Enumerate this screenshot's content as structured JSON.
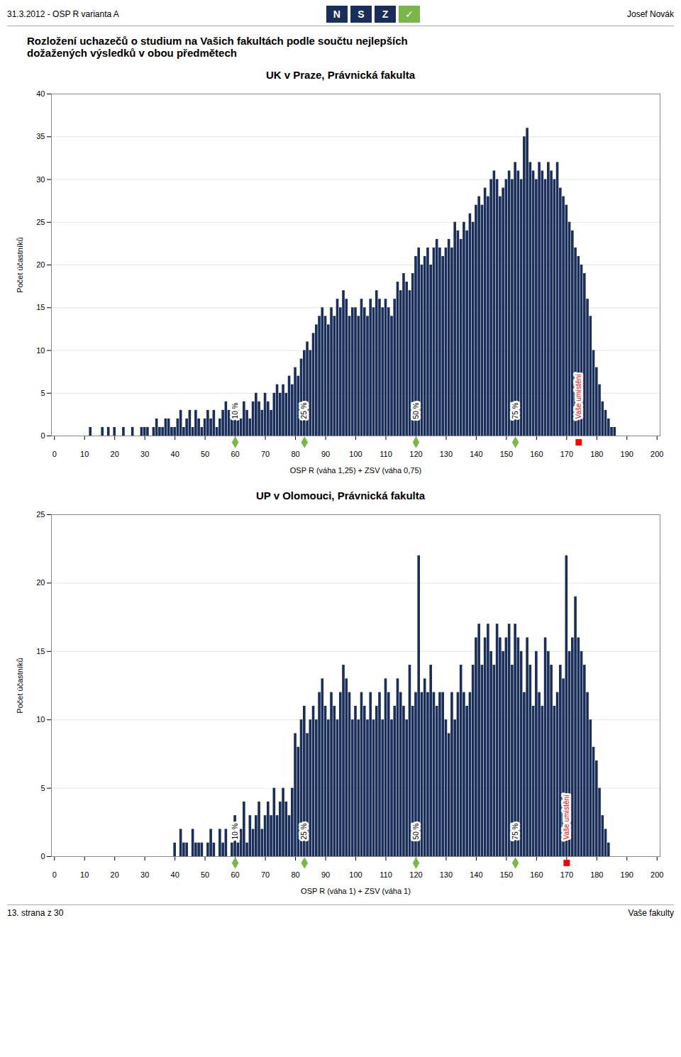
{
  "title": "Rozložení uchazečů o studium na Vašich fakultách podle součtu nejlepších",
  "subtitle": "dožažených výsledků v obou předmětech",
  "page_header": [
    "31.3.2012 - OSP R varianta A",
    "Josef Novák"
  ],
  "page_footer": [
    "13. strana z 30",
    "Vaše fakulty"
  ],
  "logo": {
    "texts": [
      "N",
      "S",
      "Z",
      "✓"
    ],
    "colors": [
      "#1a2e5a",
      "#1a2e5a",
      "#1a2e5a",
      "#7ab648"
    ]
  },
  "chart_data": [
    {
      "type": "bar",
      "title": "UK v Praze, Právnická fakulta",
      "xlabel": "OSP R (váha 1,25) + ZSV (váha 0,75)",
      "ylabel": "Počet účastníků",
      "color": "#1a2e5a",
      "grid": true,
      "xlim": [
        -1,
        201
      ],
      "xticks": [
        0,
        10,
        20,
        30,
        40,
        50,
        60,
        70,
        80,
        90,
        100,
        110,
        120,
        130,
        140,
        150,
        160,
        170,
        180,
        190,
        200
      ],
      "ylim": [
        0,
        40
      ],
      "yticks": [
        0,
        5,
        10,
        15,
        20,
        25,
        30,
        35,
        40
      ],
      "x": [
        0,
        1,
        2,
        3,
        4,
        5,
        6,
        7,
        8,
        9,
        10,
        11,
        12,
        13,
        14,
        15,
        16,
        17,
        18,
        19,
        20,
        21,
        22,
        23,
        24,
        25,
        26,
        27,
        28,
        29,
        30,
        31,
        32,
        33,
        34,
        35,
        36,
        37,
        38,
        39,
        40,
        41,
        42,
        43,
        44,
        45,
        46,
        47,
        48,
        49,
        50,
        51,
        52,
        53,
        54,
        55,
        56,
        57,
        58,
        59,
        60,
        61,
        62,
        63,
        64,
        65,
        66,
        67,
        68,
        69,
        70,
        71,
        72,
        73,
        74,
        75,
        76,
        77,
        78,
        79,
        80,
        81,
        82,
        83,
        84,
        85,
        86,
        87,
        88,
        89,
        90,
        91,
        92,
        93,
        94,
        95,
        96,
        97,
        98,
        99,
        100,
        101,
        102,
        103,
        104,
        105,
        106,
        107,
        108,
        109,
        110,
        111,
        112,
        113,
        114,
        115,
        116,
        117,
        118,
        119,
        120,
        121,
        122,
        123,
        124,
        125,
        126,
        127,
        128,
        129,
        130,
        131,
        132,
        133,
        134,
        135,
        136,
        137,
        138,
        139,
        140,
        141,
        142,
        143,
        144,
        145,
        146,
        147,
        148,
        149,
        150,
        151,
        152,
        153,
        154,
        155,
        156,
        157,
        158,
        159,
        160,
        161,
        162,
        163,
        164,
        165,
        166,
        167,
        168,
        169,
        170,
        171,
        172,
        173,
        174,
        175,
        176,
        177,
        178,
        179,
        180,
        181,
        182,
        183,
        184,
        185,
        186,
        187,
        188,
        189,
        190,
        191,
        192,
        193,
        194,
        195,
        196,
        197,
        198,
        199
      ],
      "values": [
        0,
        0,
        0,
        0,
        0,
        0,
        0,
        0,
        0,
        0,
        0,
        0,
        1,
        0,
        0,
        0,
        1,
        0,
        1,
        0,
        1,
        0,
        0,
        1,
        0,
        0,
        1,
        0,
        0,
        1,
        1,
        1,
        0,
        1,
        2,
        1,
        1,
        2,
        2,
        1,
        1,
        2,
        3,
        1,
        2,
        3,
        1,
        3,
        2,
        1,
        2,
        3,
        2,
        3,
        1,
        2,
        3,
        4,
        3,
        2,
        4,
        3,
        2,
        4,
        3,
        2,
        4,
        5,
        4,
        3,
        5,
        4,
        3,
        5,
        6,
        5,
        6,
        5,
        7,
        6,
        8,
        7,
        9,
        10,
        11,
        10,
        12,
        13,
        14,
        15,
        14,
        13,
        15,
        14,
        16,
        15,
        17,
        16,
        14,
        15,
        15,
        14,
        16,
        15,
        14,
        16,
        15,
        17,
        16,
        15,
        16,
        15,
        14,
        16,
        18,
        17,
        19,
        18,
        17,
        19,
        21,
        22,
        20,
        21,
        22,
        20,
        22,
        23,
        22,
        21,
        22,
        23,
        22,
        25,
        24,
        23,
        25,
        24,
        26,
        25,
        27,
        28,
        27,
        29,
        28,
        30,
        31,
        30,
        28,
        29,
        30,
        31,
        30,
        32,
        31,
        30,
        35,
        36,
        32,
        31,
        30,
        32,
        31,
        30,
        32,
        31,
        30,
        32,
        29,
        28,
        27,
        25,
        24,
        22,
        21,
        20,
        19,
        16,
        14,
        10,
        8,
        6,
        4,
        3,
        2,
        1,
        1,
        0,
        0,
        0,
        0,
        0,
        0,
        0,
        0,
        0,
        0,
        0,
        0,
        0
      ],
      "annotations": [
        {
          "x": 60,
          "text": "10 %",
          "marker": "diamond",
          "color": "#7ab648"
        },
        {
          "x": 83,
          "text": "25 %",
          "marker": "diamond",
          "color": "#7ab648"
        },
        {
          "x": 120,
          "text": "50 %",
          "marker": "diamond",
          "color": "#7ab648"
        },
        {
          "x": 153,
          "text": "75 %",
          "marker": "diamond",
          "color": "#7ab648"
        },
        {
          "x": 174,
          "text": "Vaše umístění",
          "marker": "square",
          "color": "red",
          "text_color": "red"
        }
      ]
    },
    {
      "type": "bar",
      "title": "UP v Olomouci, Právnická fakulta",
      "xlabel": "OSP R (váha 1) + ZSV (váha 1)",
      "ylabel": "Počet účastníků",
      "color": "#1a2e5a",
      "grid": true,
      "xlim": [
        -1,
        201
      ],
      "xticks": [
        0,
        10,
        20,
        30,
        40,
        50,
        60,
        70,
        80,
        90,
        100,
        110,
        120,
        130,
        140,
        150,
        160,
        170,
        180,
        190,
        200
      ],
      "ylim": [
        0,
        25
      ],
      "yticks": [
        0,
        5,
        10,
        15,
        20,
        25
      ],
      "x": [
        0,
        1,
        2,
        3,
        4,
        5,
        6,
        7,
        8,
        9,
        10,
        11,
        12,
        13,
        14,
        15,
        16,
        17,
        18,
        19,
        20,
        21,
        22,
        23,
        24,
        25,
        26,
        27,
        28,
        29,
        30,
        31,
        32,
        33,
        34,
        35,
        36,
        37,
        38,
        39,
        40,
        41,
        42,
        43,
        44,
        45,
        46,
        47,
        48,
        49,
        50,
        51,
        52,
        53,
        54,
        55,
        56,
        57,
        58,
        59,
        60,
        61,
        62,
        63,
        64,
        65,
        66,
        67,
        68,
        69,
        70,
        71,
        72,
        73,
        74,
        75,
        76,
        77,
        78,
        79,
        80,
        81,
        82,
        83,
        84,
        85,
        86,
        87,
        88,
        89,
        90,
        91,
        92,
        93,
        94,
        95,
        96,
        97,
        98,
        99,
        100,
        101,
        102,
        103,
        104,
        105,
        106,
        107,
        108,
        109,
        110,
        111,
        112,
        113,
        114,
        115,
        116,
        117,
        118,
        119,
        120,
        121,
        122,
        123,
        124,
        125,
        126,
        127,
        128,
        129,
        130,
        131,
        132,
        133,
        134,
        135,
        136,
        137,
        138,
        139,
        140,
        141,
        142,
        143,
        144,
        145,
        146,
        147,
        148,
        149,
        150,
        151,
        152,
        153,
        154,
        155,
        156,
        157,
        158,
        159,
        160,
        161,
        162,
        163,
        164,
        165,
        166,
        167,
        168,
        169,
        170,
        171,
        172,
        173,
        174,
        175,
        176,
        177,
        178,
        179,
        180,
        181,
        182,
        183,
        184,
        185,
        186,
        187,
        188,
        189,
        190,
        191,
        192,
        193,
        194,
        195,
        196,
        197,
        198,
        199
      ],
      "values": [
        0,
        0,
        0,
        0,
        0,
        0,
        0,
        0,
        0,
        0,
        0,
        0,
        0,
        0,
        0,
        0,
        0,
        0,
        0,
        0,
        0,
        0,
        0,
        0,
        0,
        0,
        0,
        0,
        0,
        0,
        0,
        0,
        0,
        0,
        0,
        0,
        0,
        0,
        0,
        0,
        1,
        0,
        2,
        1,
        1,
        0,
        2,
        1,
        1,
        1,
        0,
        1,
        2,
        1,
        0,
        2,
        1,
        2,
        0,
        1,
        3,
        1,
        2,
        4,
        1,
        3,
        2,
        3,
        4,
        2,
        3,
        4,
        3,
        5,
        3,
        4,
        5,
        4,
        3,
        5,
        9,
        8,
        10,
        11,
        9,
        10,
        11,
        10,
        12,
        13,
        11,
        10,
        12,
        11,
        10,
        12,
        14,
        13,
        12,
        10,
        11,
        10,
        12,
        11,
        10,
        12,
        10,
        11,
        12,
        10,
        13,
        12,
        10,
        11,
        13,
        12,
        11,
        10,
        14,
        11,
        12,
        22,
        12,
        13,
        12,
        14,
        12,
        11,
        12,
        12,
        10,
        9,
        12,
        10,
        12,
        14,
        12,
        11,
        12,
        14,
        16,
        17,
        14,
        16,
        17,
        15,
        14,
        17,
        16,
        15,
        16,
        17,
        14,
        17,
        16,
        15,
        12,
        16,
        14,
        11,
        15,
        12,
        11,
        16,
        15,
        14,
        11,
        12,
        14,
        13,
        22,
        15,
        16,
        19,
        16,
        15,
        14,
        12,
        10,
        8,
        7,
        5,
        3,
        2,
        1,
        0,
        0,
        0,
        0,
        0,
        0,
        0,
        0,
        0,
        0,
        0,
        0,
        0,
        0,
        0
      ],
      "annotations": [
        {
          "x": 60,
          "text": "10 %",
          "marker": "diamond",
          "color": "#7ab648"
        },
        {
          "x": 83,
          "text": "25 %",
          "marker": "diamond",
          "color": "#7ab648"
        },
        {
          "x": 120,
          "text": "50 %",
          "marker": "diamond",
          "color": "#7ab648"
        },
        {
          "x": 153,
          "text": "75 %",
          "marker": "diamond",
          "color": "#7ab648"
        },
        {
          "x": 170,
          "text": "Vaše umístění",
          "marker": "square",
          "color": "red",
          "text_color": "red"
        }
      ]
    }
  ]
}
